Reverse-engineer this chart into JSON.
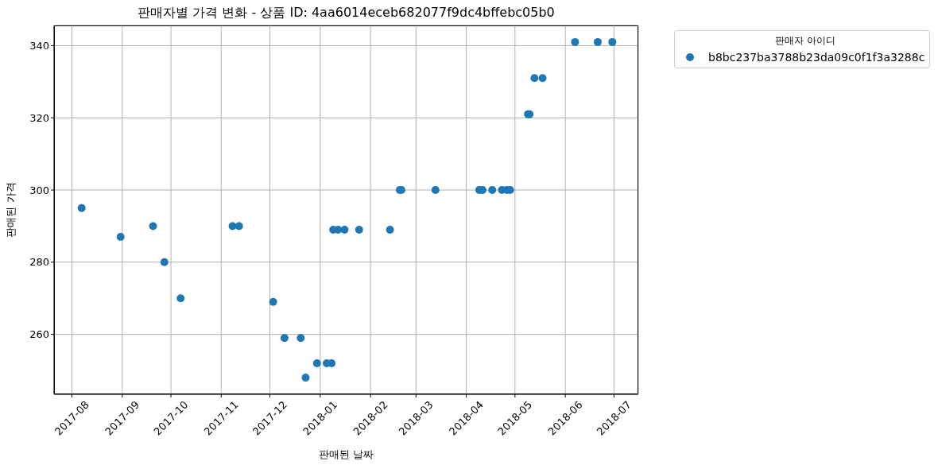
{
  "chart_data": {
    "type": "scatter",
    "title": "판매자별 가격 변화 - 상품 ID: 4aa6014eceb682077f9dc4bffebc05b0",
    "xlabel": "판매된 날짜",
    "ylabel": "판매된 가격",
    "legend_title": "판매자 아이디",
    "series": [
      {
        "name": "b8bc237ba3788b23da09c0f1f3a3288c",
        "color": "#1f77b4",
        "x": [
          "2017-08-07",
          "2017-08-31",
          "2017-09-20",
          "2017-09-27",
          "2017-10-07",
          "2017-11-08",
          "2017-11-12",
          "2017-12-03",
          "2017-12-10",
          "2017-12-20",
          "2017-12-23",
          "2017-12-30",
          "2018-01-05",
          "2018-01-08",
          "2018-01-09",
          "2018-01-12",
          "2018-01-16",
          "2018-01-25",
          "2018-02-13",
          "2018-02-19",
          "2018-02-20",
          "2018-03-13",
          "2018-04-09",
          "2018-04-11",
          "2018-04-17",
          "2018-04-23",
          "2018-04-26",
          "2018-04-28",
          "2018-05-09",
          "2018-05-10",
          "2018-05-13",
          "2018-05-18",
          "2018-06-07",
          "2018-06-21",
          "2018-06-30"
        ],
        "values": [
          295,
          287,
          290,
          280,
          270,
          290,
          290,
          269,
          259,
          259,
          248,
          252,
          252,
          252,
          289,
          289,
          289,
          289,
          289,
          300,
          300,
          300,
          300,
          300,
          300,
          300,
          300,
          300,
          321,
          321,
          331,
          331,
          341,
          341,
          341
        ]
      }
    ],
    "xlim": [
      "2017-07-21",
      "2018-07-16"
    ],
    "xticks": [
      "2017-08",
      "2017-09",
      "2017-10",
      "2017-11",
      "2017-12",
      "2018-01",
      "2018-02",
      "2018-03",
      "2018-04",
      "2018-05",
      "2018-06",
      "2018-07"
    ],
    "ylim": [
      243.4,
      345.6
    ],
    "yticks": [
      260,
      280,
      300,
      320,
      340
    ],
    "grid": true,
    "legend": "right",
    "marker": "circle"
  }
}
